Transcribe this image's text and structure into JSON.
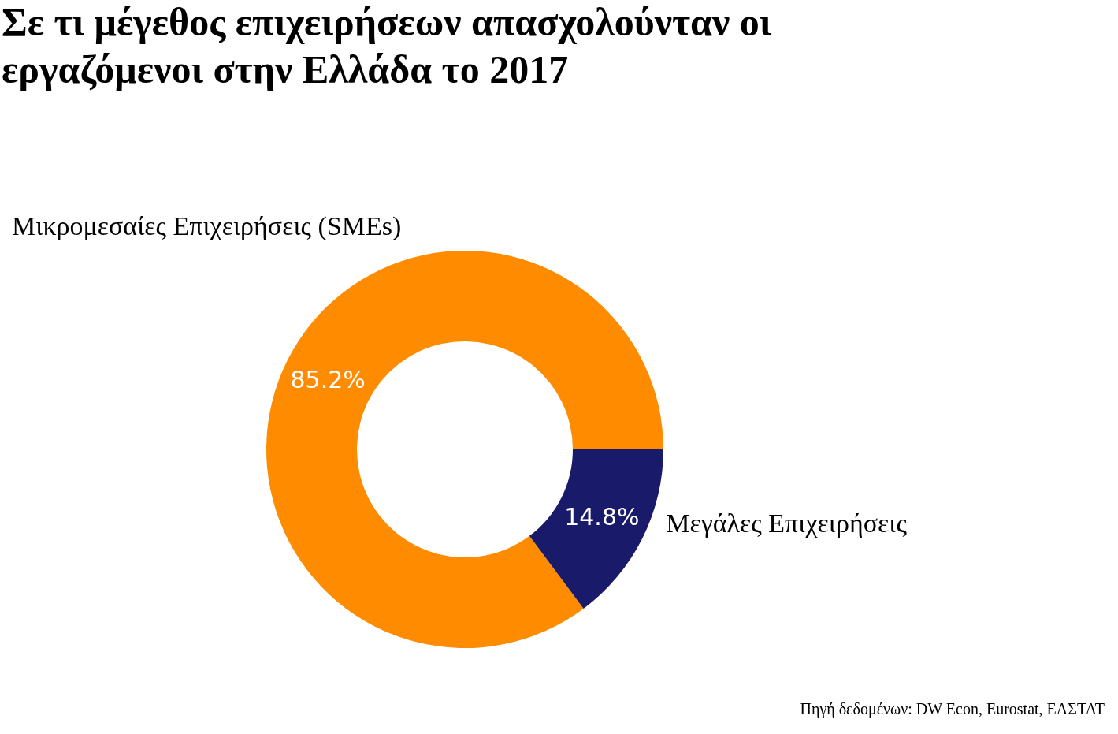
{
  "chart_data": {
    "type": "donut",
    "title": [
      "Σε τι μέγεθος επιχειρήσεων απασχολούνταν οι",
      "εργαζόμενοι στην Ελλάδα το 2017"
    ],
    "categories": [
      "Μικρομεσαίες Επιχειρήσεις (SMEs)",
      "Μεγάλες Επιχειρήσεις"
    ],
    "values": [
      85.2,
      14.8
    ],
    "colors": [
      "#ff8c00",
      "#1a1a6b"
    ],
    "value_labels": [
      "85.2%",
      "14.8%"
    ],
    "annotations": [
      "Πηγή δεδομένων: DW Econ, Eurostat, ΕΛΣΤΑΤ"
    ]
  }
}
